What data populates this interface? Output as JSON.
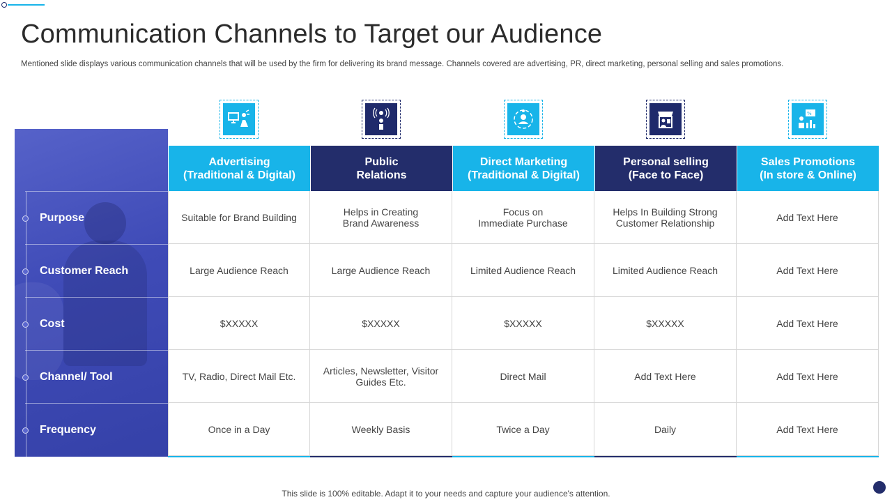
{
  "title": "Communication Channels to Target our Audience",
  "subtitle": "Mentioned slide displays various communication channels that will be used by the firm for delivering its brand message. Channels covered are advertising, PR, direct marketing, personal selling and sales promotions.",
  "colors": {
    "accent_light": "#18b4e9",
    "accent_dark": "#232d6b",
    "panel": "#3f4bb7"
  },
  "columns": [
    {
      "line1": "Advertising",
      "line2": "(Traditional & Digital)",
      "icon": "advertising-icon",
      "style": "light"
    },
    {
      "line1": "Public",
      "line2": "Relations",
      "icon": "public-relations-icon",
      "style": "dark"
    },
    {
      "line1": "Direct Marketing",
      "line2": "(Traditional & Digital)",
      "icon": "direct-marketing-icon",
      "style": "light"
    },
    {
      "line1": "Personal selling",
      "line2": "(Face to Face)",
      "icon": "personal-selling-icon",
      "style": "dark"
    },
    {
      "line1": "Sales Promotions",
      "line2": "(In store & Online)",
      "icon": "sales-promotions-icon",
      "style": "light"
    }
  ],
  "rows": [
    {
      "label": "Purpose",
      "cells": [
        [
          "Suitable for Brand Building"
        ],
        [
          "Helps in Creating",
          "Brand Awareness"
        ],
        [
          "Focus on",
          "Immediate Purchase"
        ],
        [
          "Helps In Building Strong",
          "Customer Relationship"
        ],
        [
          "Add Text Here"
        ]
      ]
    },
    {
      "label": "Customer Reach",
      "cells": [
        [
          "Large Audience Reach"
        ],
        [
          "Large Audience Reach"
        ],
        [
          "Limited Audience Reach"
        ],
        [
          "Limited Audience Reach"
        ],
        [
          "Add Text Here"
        ]
      ]
    },
    {
      "label": "Cost",
      "cells": [
        [
          "$XXXXX"
        ],
        [
          "$XXXXX"
        ],
        [
          "$XXXXX"
        ],
        [
          "$XXXXX"
        ],
        [
          "Add Text Here"
        ]
      ]
    },
    {
      "label": "Channel/ Tool",
      "cells": [
        [
          "TV, Radio, Direct Mail Etc."
        ],
        [
          "Articles, Newsletter, Visitor",
          "Guides Etc."
        ],
        [
          "Direct Mail"
        ],
        [
          "Add Text Here"
        ],
        [
          "Add Text Here"
        ]
      ]
    },
    {
      "label": "Frequency",
      "cells": [
        [
          "Once in a Day"
        ],
        [
          "Weekly Basis"
        ],
        [
          "Twice a Day"
        ],
        [
          "Daily"
        ],
        [
          "Add Text Here"
        ]
      ]
    }
  ],
  "footer": "This slide is 100% editable. Adapt it to your needs and capture your audience's attention."
}
